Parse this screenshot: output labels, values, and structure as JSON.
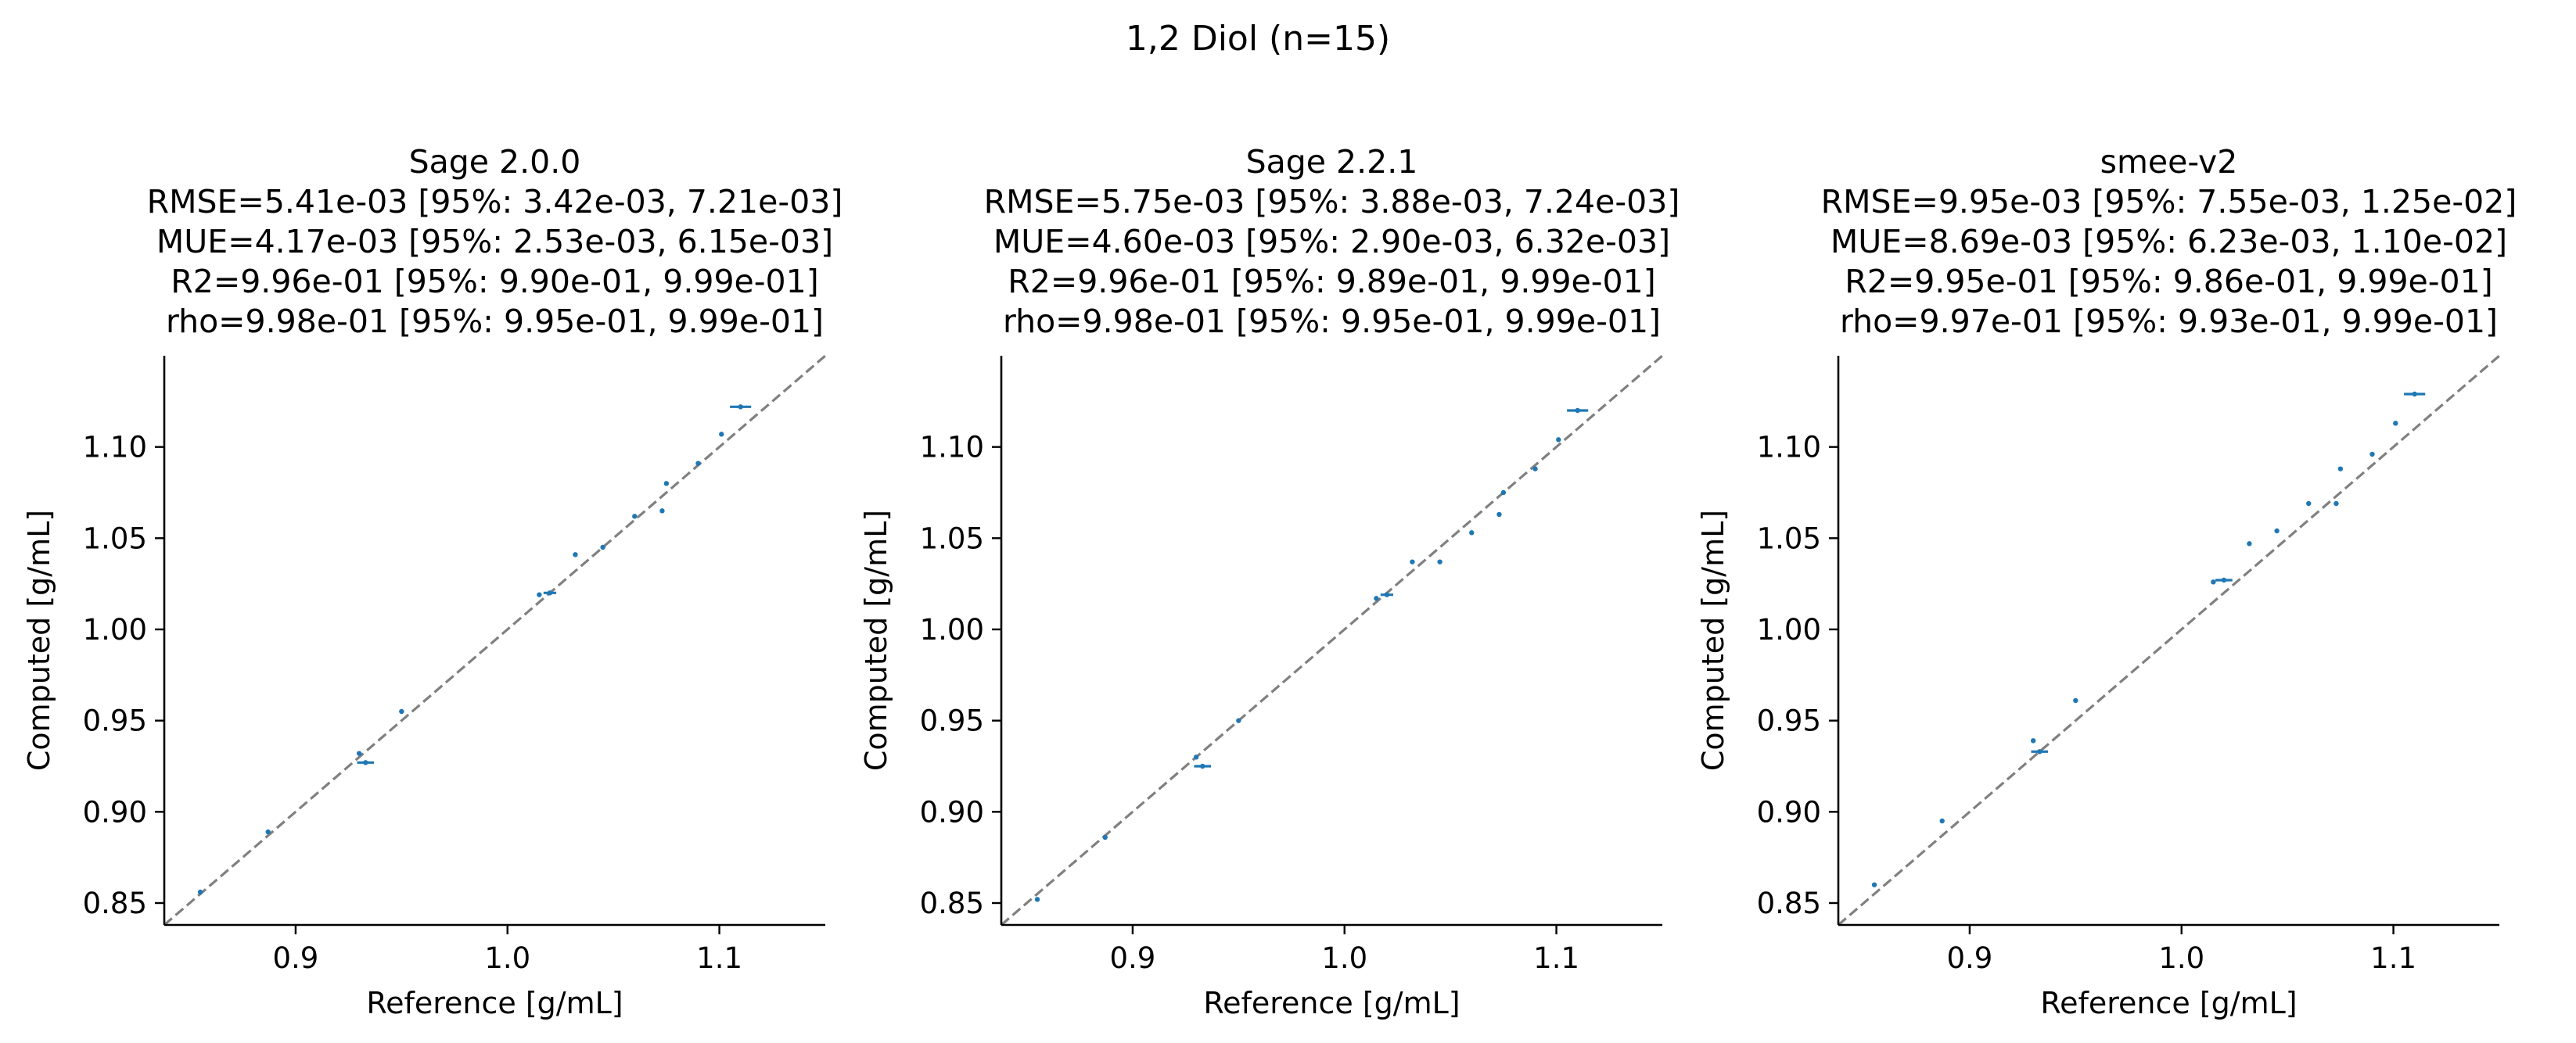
{
  "figure": {
    "suptitle": "1,2 Diol (n=15)",
    "point_color": "#1f77b4",
    "diagonal_color": "#808080"
  },
  "chart_data": [
    {
      "type": "scatter",
      "title_lines": [
        "Sage 2.0.0",
        "RMSE=5.41e-03 [95%: 3.42e-03, 7.21e-03]",
        "MUE=4.17e-03 [95%: 2.53e-03, 6.15e-03]",
        "R2=9.96e-01 [95%: 9.90e-01, 9.99e-01]",
        "rho=9.98e-01 [95%: 9.95e-01, 9.99e-01]"
      ],
      "xlabel": "Reference [g/mL]",
      "ylabel": "Computed [g/mL]",
      "xlim": [
        0.838,
        1.15
      ],
      "ylim": [
        0.838,
        1.15
      ],
      "xticks": [
        0.9,
        1.0,
        1.1
      ],
      "xtick_labels": [
        "0.9",
        "1.0",
        "1.1"
      ],
      "yticks": [
        0.85,
        0.9,
        0.95,
        1.0,
        1.05,
        1.1
      ],
      "ytick_labels": [
        "0.85",
        "0.90",
        "0.95",
        "1.00",
        "1.05",
        "1.10"
      ],
      "diagonal": true,
      "points": [
        {
          "x": 0.855,
          "y": 0.856,
          "xerr": 0.0,
          "yerr": 0.0
        },
        {
          "x": 0.887,
          "y": 0.889,
          "xerr": 0.0,
          "yerr": 0.0
        },
        {
          "x": 0.93,
          "y": 0.932,
          "xerr": 0.0,
          "yerr": 0.0
        },
        {
          "x": 0.933,
          "y": 0.927,
          "xerr": 0.004,
          "yerr": 0.0
        },
        {
          "x": 0.95,
          "y": 0.955,
          "xerr": 0.0,
          "yerr": 0.0
        },
        {
          "x": 1.015,
          "y": 1.019,
          "xerr": 0.0,
          "yerr": 0.0
        },
        {
          "x": 1.02,
          "y": 1.02,
          "xerr": 0.003,
          "yerr": 0.0
        },
        {
          "x": 1.032,
          "y": 1.041,
          "xerr": 0.0,
          "yerr": 0.0
        },
        {
          "x": 1.045,
          "y": 1.045,
          "xerr": 0.0,
          "yerr": 0.0
        },
        {
          "x": 1.06,
          "y": 1.062,
          "xerr": 0.0,
          "yerr": 0.0
        },
        {
          "x": 1.073,
          "y": 1.065,
          "xerr": 0.0,
          "yerr": 0.0
        },
        {
          "x": 1.075,
          "y": 1.08,
          "xerr": 0.0,
          "yerr": 0.0
        },
        {
          "x": 1.09,
          "y": 1.091,
          "xerr": 0.0,
          "yerr": 0.0
        },
        {
          "x": 1.101,
          "y": 1.107,
          "xerr": 0.0,
          "yerr": 0.0
        },
        {
          "x": 1.11,
          "y": 1.122,
          "xerr": 0.005,
          "yerr": 0.0
        }
      ]
    },
    {
      "type": "scatter",
      "title_lines": [
        "Sage 2.2.1",
        "RMSE=5.75e-03 [95%: 3.88e-03, 7.24e-03]",
        "MUE=4.60e-03 [95%: 2.90e-03, 6.32e-03]",
        "R2=9.96e-01 [95%: 9.89e-01, 9.99e-01]",
        "rho=9.98e-01 [95%: 9.95e-01, 9.99e-01]"
      ],
      "xlabel": "Reference [g/mL]",
      "ylabel": "Computed [g/mL]",
      "xlim": [
        0.838,
        1.15
      ],
      "ylim": [
        0.838,
        1.15
      ],
      "xticks": [
        0.9,
        1.0,
        1.1
      ],
      "xtick_labels": [
        "0.9",
        "1.0",
        "1.1"
      ],
      "yticks": [
        0.85,
        0.9,
        0.95,
        1.0,
        1.05,
        1.1
      ],
      "ytick_labels": [
        "0.85",
        "0.90",
        "0.95",
        "1.00",
        "1.05",
        "1.10"
      ],
      "diagonal": true,
      "points": [
        {
          "x": 0.855,
          "y": 0.852,
          "xerr": 0.0,
          "yerr": 0.0
        },
        {
          "x": 0.887,
          "y": 0.886,
          "xerr": 0.0,
          "yerr": 0.0
        },
        {
          "x": 0.93,
          "y": 0.93,
          "xerr": 0.0,
          "yerr": 0.0
        },
        {
          "x": 0.933,
          "y": 0.925,
          "xerr": 0.004,
          "yerr": 0.0
        },
        {
          "x": 0.95,
          "y": 0.95,
          "xerr": 0.0,
          "yerr": 0.0
        },
        {
          "x": 1.015,
          "y": 1.017,
          "xerr": 0.0,
          "yerr": 0.0
        },
        {
          "x": 1.02,
          "y": 1.019,
          "xerr": 0.003,
          "yerr": 0.0
        },
        {
          "x": 1.032,
          "y": 1.037,
          "xerr": 0.0,
          "yerr": 0.0
        },
        {
          "x": 1.045,
          "y": 1.037,
          "xerr": 0.0,
          "yerr": 0.0
        },
        {
          "x": 1.06,
          "y": 1.053,
          "xerr": 0.0,
          "yerr": 0.0
        },
        {
          "x": 1.073,
          "y": 1.063,
          "xerr": 0.0,
          "yerr": 0.0
        },
        {
          "x": 1.075,
          "y": 1.075,
          "xerr": 0.0,
          "yerr": 0.0
        },
        {
          "x": 1.09,
          "y": 1.088,
          "xerr": 0.0,
          "yerr": 0.0
        },
        {
          "x": 1.101,
          "y": 1.104,
          "xerr": 0.0,
          "yerr": 0.0
        },
        {
          "x": 1.11,
          "y": 1.12,
          "xerr": 0.005,
          "yerr": 0.0
        }
      ]
    },
    {
      "type": "scatter",
      "title_lines": [
        "smee-v2",
        "RMSE=9.95e-03 [95%: 7.55e-03, 1.25e-02]",
        "MUE=8.69e-03 [95%: 6.23e-03, 1.10e-02]",
        "R2=9.95e-01 [95%: 9.86e-01, 9.99e-01]",
        "rho=9.97e-01 [95%: 9.93e-01, 9.99e-01]"
      ],
      "xlabel": "Reference [g/mL]",
      "ylabel": "Computed [g/mL]",
      "xlim": [
        0.838,
        1.15
      ],
      "ylim": [
        0.838,
        1.15
      ],
      "xticks": [
        0.9,
        1.0,
        1.1
      ],
      "xtick_labels": [
        "0.9",
        "1.0",
        "1.1"
      ],
      "yticks": [
        0.85,
        0.9,
        0.95,
        1.0,
        1.05,
        1.1
      ],
      "ytick_labels": [
        "0.85",
        "0.90",
        "0.95",
        "1.00",
        "1.05",
        "1.10"
      ],
      "diagonal": true,
      "points": [
        {
          "x": 0.855,
          "y": 0.86,
          "xerr": 0.0,
          "yerr": 0.0
        },
        {
          "x": 0.887,
          "y": 0.895,
          "xerr": 0.0,
          "yerr": 0.0
        },
        {
          "x": 0.93,
          "y": 0.939,
          "xerr": 0.0,
          "yerr": 0.0
        },
        {
          "x": 0.933,
          "y": 0.933,
          "xerr": 0.004,
          "yerr": 0.0
        },
        {
          "x": 0.95,
          "y": 0.961,
          "xerr": 0.0,
          "yerr": 0.0
        },
        {
          "x": 1.015,
          "y": 1.026,
          "xerr": 0.0,
          "yerr": 0.0
        },
        {
          "x": 1.02,
          "y": 1.027,
          "xerr": 0.004,
          "yerr": 0.0
        },
        {
          "x": 1.032,
          "y": 1.047,
          "xerr": 0.0,
          "yerr": 0.0
        },
        {
          "x": 1.045,
          "y": 1.054,
          "xerr": 0.0,
          "yerr": 0.0
        },
        {
          "x": 1.06,
          "y": 1.069,
          "xerr": 0.0,
          "yerr": 0.0
        },
        {
          "x": 1.073,
          "y": 1.069,
          "xerr": 0.0,
          "yerr": 0.0
        },
        {
          "x": 1.075,
          "y": 1.088,
          "xerr": 0.0,
          "yerr": 0.0
        },
        {
          "x": 1.09,
          "y": 1.096,
          "xerr": 0.0,
          "yerr": 0.0
        },
        {
          "x": 1.101,
          "y": 1.113,
          "xerr": 0.0,
          "yerr": 0.0
        },
        {
          "x": 1.11,
          "y": 1.129,
          "xerr": 0.005,
          "yerr": 0.0
        }
      ]
    }
  ]
}
